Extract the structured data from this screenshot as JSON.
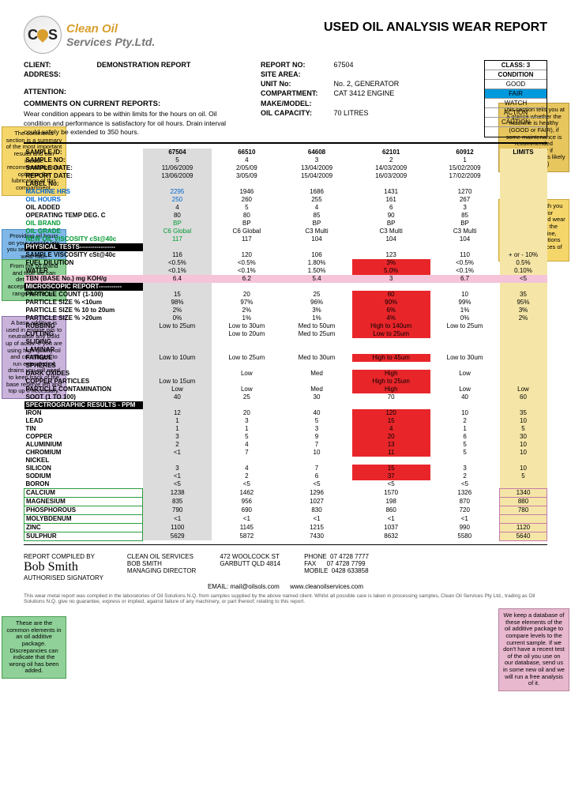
{
  "logo": {
    "line1": "Clean Oil",
    "line2": "Services Pty.Ltd."
  },
  "title": "USED OIL ANALYSIS WEAR REPORT",
  "client_info": {
    "client_lbl": "CLIENT:",
    "client": "DEMONSTRATION REPORT",
    "address_lbl": "ADDRESS:",
    "attention_lbl": "ATTENTION:"
  },
  "report_info": {
    "report_no_lbl": "REPORT NO:",
    "report_no": "67504",
    "site_lbl": "SITE AREA:",
    "unit_lbl": "UNIT No:",
    "unit": "No. 2, GENERATOR",
    "comp_lbl": "COMPARTMENT:",
    "comp": "CAT 3412 ENGINE",
    "make_lbl": "MAKE/MODEL:",
    "cap_lbl": "OIL CAPACITY:",
    "cap": "70 LITRES"
  },
  "class_box": {
    "class": "CLASS: 3",
    "cond": "CONDITION",
    "good": "GOOD",
    "fair": "FAIR",
    "watch": "WATCH",
    "action": "ACTION",
    "caution": "CAUTION"
  },
  "comments_title": "COMMENTS ON CURRENT REPORTS:",
  "comments": "Wear condition appears to be within limits for the hours on oil. Oil condition and performance is satisfactory for oil hours. Drain interval could safely be extended to 350 hours.",
  "limits": "LIMITS",
  "cols": [
    "67504",
    "66510",
    "64608",
    "62101",
    "60912"
  ],
  "meta_rows": [
    {
      "label": "SAMPLE ID:",
      "v": [
        "67504",
        "66510",
        "64608",
        "62101",
        "60912"
      ],
      "lim": ""
    },
    {
      "label": "SAMPLE NO:",
      "v": [
        "5",
        "4",
        "3",
        "2",
        "1"
      ],
      "lim": ""
    },
    {
      "label": "SAMPLE DATE:",
      "v": [
        "11/06/2009",
        "2/05/09",
        "13/04/2009",
        "14/03/2009",
        "15/02/2009"
      ],
      "lim": ""
    },
    {
      "label": "REPORT DATE:",
      "v": [
        "13/06/2009",
        "3/05/09",
        "15/04/2009",
        "16/03/2009",
        "17/02/2009"
      ],
      "lim": ""
    },
    {
      "label": "LABEL No:",
      "v": [
        "",
        "",
        "",
        "",
        ""
      ],
      "lim": ""
    }
  ],
  "blue_rows": [
    {
      "label": "MACHINE HRS",
      "v": [
        "2295",
        "1946",
        "1686",
        "1431",
        "1270"
      ],
      "lim": ""
    },
    {
      "label": "OIL HOURS",
      "v": [
        "250",
        "260",
        "255",
        "161",
        "267"
      ],
      "lim": ""
    }
  ],
  "std_rows": [
    {
      "label": "OIL ADDED",
      "v": [
        "4",
        "5",
        "4",
        "6",
        "3"
      ],
      "lim": ""
    },
    {
      "label": "OPERATING TEMP DEG. C",
      "v": [
        "80",
        "80",
        "85",
        "90",
        "85"
      ],
      "lim": ""
    }
  ],
  "green_rows": [
    {
      "label": "OIL BRAND",
      "v": [
        "BP",
        "BP",
        "BP",
        "BP",
        "BP"
      ],
      "lim": ""
    },
    {
      "label": "OIL GRADE",
      "v": [
        "C6 Global",
        "C6 Global",
        "C3 Multi",
        "C3 Multi",
        "C3 Multi"
      ],
      "lim": ""
    },
    {
      "label": "NEW OIL VISCOSITY cSt@40c",
      "v": [
        "117",
        "117",
        "104",
        "104",
        "104"
      ],
      "lim": ""
    }
  ],
  "phys_title": "PHYSICAL TESTS-----------------",
  "phys_rows": [
    {
      "label": "SAMPLE VISCOSITY cSt@40c",
      "v": [
        "116",
        "120",
        "106",
        "123",
        "110"
      ],
      "lim": "+ or - 10%"
    },
    {
      "label": "FUEL DILUTION",
      "v": [
        "<0.5%",
        "<0.5%",
        "1.80%",
        "3%",
        "<0.5%"
      ],
      "lim": "0.5%",
      "red": [
        3
      ]
    },
    {
      "label": "WATER",
      "v": [
        "<0.1%",
        "<0.1%",
        "1.50%",
        "5.0%",
        "<0.1%"
      ],
      "lim": "0.10%",
      "red": [
        3
      ]
    }
  ],
  "tbn_row": {
    "label": "TBN (BASE No.) mg KOH/g",
    "v": [
      "6.4",
      "6.2",
      "5.4",
      "3",
      "6.7"
    ],
    "lim": "<5"
  },
  "micro_title": "MICROSCOPIC REPORT-----------",
  "micro_rows": [
    {
      "label": "PARTICLE COUNT (1-100)",
      "v": [
        "15",
        "20",
        "25",
        "60",
        "10"
      ],
      "lim": "35",
      "red": [
        3
      ]
    },
    {
      "label": "PARTICLE SIZE % <10um",
      "v": [
        "98%",
        "97%",
        "96%",
        "90%",
        "99%"
      ],
      "lim": "95%",
      "red": [
        3
      ]
    },
    {
      "label": "PARTICLE SIZE %  10 to 20um",
      "v": [
        "2%",
        "2%",
        "3%",
        "6%",
        "1%"
      ],
      "lim": "3%",
      "red": [
        3
      ]
    },
    {
      "label": "PARTICLE SIZE % >20um",
      "v": [
        "0%",
        "1%",
        "1%",
        "4%",
        "0%"
      ],
      "lim": "2%",
      "red": [
        3
      ]
    },
    {
      "label": "RUBBING",
      "v": [
        "Low to 25um",
        "Low to 30um",
        "Med to 50um",
        "High to 140um",
        "Low to 25um"
      ],
      "lim": "",
      "red": [
        3
      ]
    },
    {
      "label": "CUTTING",
      "v": [
        "",
        "Low to 20um",
        "Med to 25um",
        "Low to 25um",
        ""
      ],
      "lim": "",
      "red": [
        3
      ]
    },
    {
      "label": "SLIDING",
      "v": [
        "",
        "",
        "",
        "",
        ""
      ],
      "lim": ""
    },
    {
      "label": "LAMINAR",
      "v": [
        "",
        "",
        "",
        "",
        ""
      ],
      "lim": ""
    },
    {
      "label": "FATIGUE",
      "v": [
        "Low to 10um",
        "Low to 25um",
        "Med to 30um",
        "High to 45um",
        "Low to 30um"
      ],
      "lim": "",
      "red": [
        3
      ]
    },
    {
      "label": "SPHERES",
      "v": [
        "",
        "",
        "",
        "",
        ""
      ],
      "lim": ""
    },
    {
      "label": "DARK OXIDES",
      "v": [
        "",
        "Low",
        "Med",
        "High",
        "Low"
      ],
      "lim": "",
      "red": [
        3
      ]
    },
    {
      "label": "COPPER PARTICLES",
      "v": [
        "Low to 15um",
        "",
        "",
        "High to 25um",
        ""
      ],
      "lim": "",
      "red": [
        3
      ]
    },
    {
      "label": "PARTICLE CONTAMINATION",
      "v": [
        "Low",
        "Low",
        "Med",
        "High",
        "Low"
      ],
      "lim": "Low",
      "red": [
        3
      ]
    },
    {
      "label": "SOOT (1 TO 100)",
      "v": [
        "40",
        "25",
        "30",
        "70",
        "40"
      ],
      "lim": "60"
    }
  ],
  "spectro_title": "SPECTROGRAPHIC RESULTS - PPM",
  "spectro_rows": [
    {
      "label": "IRON",
      "v": [
        "12",
        "20",
        "40",
        "120",
        "10"
      ],
      "lim": "35",
      "red": [
        3
      ]
    },
    {
      "label": "LEAD",
      "v": [
        "1",
        "3",
        "5",
        "15",
        "2"
      ],
      "lim": "10",
      "red": [
        3
      ]
    },
    {
      "label": "TIN",
      "v": [
        "1",
        "1",
        "3",
        "4",
        "1"
      ],
      "lim": "5",
      "red": [
        3
      ]
    },
    {
      "label": "COPPER",
      "v": [
        "3",
        "5",
        "9",
        "20",
        "6"
      ],
      "lim": "30",
      "red": [
        3
      ]
    },
    {
      "label": "ALUMINIUM",
      "v": [
        "2",
        "4",
        "7",
        "13",
        "5"
      ],
      "lim": "10",
      "red": [
        3
      ]
    },
    {
      "label": "CHROMIUM",
      "v": [
        "<1",
        "7",
        "10",
        "11",
        "5"
      ],
      "lim": "10",
      "red": [
        3
      ]
    },
    {
      "label": "NICKEL",
      "v": [
        "",
        "",
        "",
        "",
        ""
      ],
      "lim": ""
    },
    {
      "label": "SILICON",
      "v": [
        "3",
        "4",
        "7",
        "15",
        "3"
      ],
      "lim": "10",
      "red": [
        3
      ]
    },
    {
      "label": "SODIUM",
      "v": [
        "<1",
        "2",
        "6",
        "37",
        "2"
      ],
      "lim": "5",
      "red": [
        3
      ]
    },
    {
      "label": "BORON",
      "v": [
        "<5",
        "<5",
        "<5",
        "<5",
        "<5"
      ],
      "lim": ""
    }
  ],
  "additive_rows": [
    {
      "label": "CALCIUM",
      "v": [
        "1238",
        "1462",
        "1296",
        "1570",
        "1326"
      ],
      "lim": "1340"
    },
    {
      "label": "MAGNESIUM",
      "v": [
        "835",
        "956",
        "1027",
        "198",
        "870"
      ],
      "lim": "880"
    },
    {
      "label": "PHOSPHOROUS",
      "v": [
        "790",
        "690",
        "830",
        "860",
        "720"
      ],
      "lim": "780"
    },
    {
      "label": "MOLYBDENUM",
      "v": [
        "<1",
        "<1",
        "<1",
        "<1",
        "<1"
      ],
      "lim": ""
    },
    {
      "label": "ZINC",
      "v": [
        "1100",
        "1145",
        "1215",
        "1037",
        "990"
      ],
      "lim": "1120"
    },
    {
      "label": "SULPHUR",
      "v": [
        "5629",
        "5872",
        "7430",
        "8632",
        "5580"
      ],
      "lim": "5640"
    }
  ],
  "callouts": {
    "comments_note": "The comments section is a summary of the most important results and can include recommendations to optimise the lubrication of this compartment.",
    "oil_hours": "Providing oil hours on your sample lets you see the trend on wear rate.",
    "oil_brand": "From the oil brand and type we can determine the acceptable viscosity range for the oil.",
    "tbn_note": "A base additive is used in engine oils to neutralise any build up of acids. If you are using high quality oil and centrifuges to run extended oil drains you will need to keep track of the base reserve left and top up if necessary.",
    "additive_note": "These are the common elements in an oil additive package. Discrepancies can indicate that the wrong oil has been added.",
    "class_note": "This section tells you at a glance whether the machine is healthy (GOOD or FAIR), if some maintenance is recommended (ACTION) or if imminent failure is likely (CAUTION)",
    "limits_note": "We can work with you to set limits for contamination and wear levels that suit the specific machine, operating conditions and consequences of failure.",
    "database_note": "We keep a database of these elements of the oil additive package to compare levels to the current sample. If we don't have a recent test of the oil you use on our database, send us in some new oil and we will run a free analysis of it."
  },
  "footer": {
    "compiled_lbl": "REPORT COMPILED BY",
    "sig": "Bob Smith",
    "auth": "AUTHORISED SIGNATORY",
    "company": "CLEAN OIL SERVICES",
    "person": "BOB SMITH",
    "role": "MANAGING DIRECTOR",
    "addr1": "472 WOOLCOCK ST",
    "addr2": "GARBUTT QLD 4814",
    "phone_lbl": "PHONE",
    "phone": "07 4728 7777",
    "fax_lbl": "FAX",
    "fax": "07 4728 7799",
    "mob_lbl": "MOBILE",
    "mob": "0428 633858",
    "email_lbl": "EMAIL:",
    "email": "mail@oilsols.com",
    "web": "www.cleanoilservices.com",
    "disclaim": "This wear metal report was compiled in the laboratories of Oil Solutions N.Q. from samples supplied by the above named client. Whilst all possible care is taken in processing samples, Clean Oil Services Pty Ltd., trading as Oil Solutions N.Q. give no guarantee, express or implied, against failure of any machinery, or part thereof; relating to this report."
  }
}
